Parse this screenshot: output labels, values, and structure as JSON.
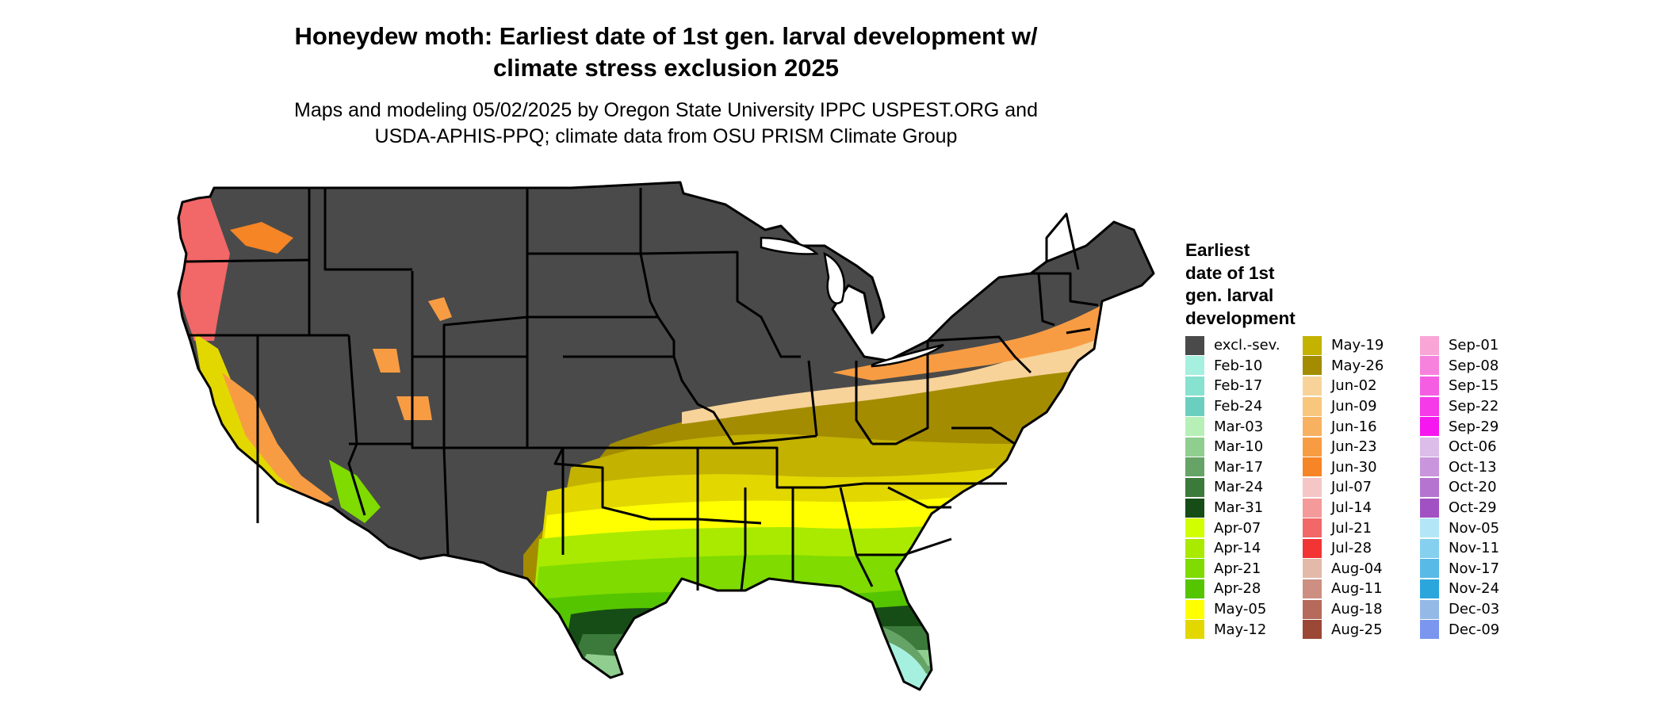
{
  "title_line1": "Honeydew moth: Earliest date of 1st gen. larval development w/",
  "title_line2": "climate stress exclusion 2025",
  "subtitle_line1": "Maps and modeling 05/02/2025 by Oregon State University IPPC USPEST.ORG and",
  "subtitle_line2": "USDA-APHIS-PPQ; climate data from OSU PRISM Climate Group",
  "legend": {
    "title_lines": [
      "Earliest",
      "date of 1st",
      "gen. larval",
      "development"
    ],
    "columns": [
      [
        {
          "label": "excl.-sev.",
          "color": "#4a4a4a"
        },
        {
          "label": "Feb-10",
          "color": "#a6f0e0"
        },
        {
          "label": "Feb-17",
          "color": "#87e2cf"
        },
        {
          "label": "Feb-24",
          "color": "#6bcfbf"
        },
        {
          "label": "Mar-03",
          "color": "#b7f0b7"
        },
        {
          "label": "Mar-10",
          "color": "#8fce8f"
        },
        {
          "label": "Mar-17",
          "color": "#66a366"
        },
        {
          "label": "Mar-24",
          "color": "#3b7a3b"
        },
        {
          "label": "Mar-31",
          "color": "#164d16"
        },
        {
          "label": "Apr-07",
          "color": "#d2ff00"
        },
        {
          "label": "Apr-14",
          "color": "#aaea00"
        },
        {
          "label": "Apr-21",
          "color": "#7fdb00"
        },
        {
          "label": "Apr-28",
          "color": "#55c500"
        },
        {
          "label": "May-05",
          "color": "#ffff00"
        },
        {
          "label": "May-12",
          "color": "#e2d800"
        }
      ],
      [
        {
          "label": "May-19",
          "color": "#c3b200"
        },
        {
          "label": "May-26",
          "color": "#a38c00"
        },
        {
          "label": "Jun-02",
          "color": "#f7d39a"
        },
        {
          "label": "Jun-09",
          "color": "#f8c67d"
        },
        {
          "label": "Jun-16",
          "color": "#f8b160"
        },
        {
          "label": "Jun-23",
          "color": "#f89c43"
        },
        {
          "label": "Jun-30",
          "color": "#f68525"
        },
        {
          "label": "Jul-07",
          "color": "#f5c6c6"
        },
        {
          "label": "Jul-14",
          "color": "#f49a9a"
        },
        {
          "label": "Jul-21",
          "color": "#f26767"
        },
        {
          "label": "Jul-28",
          "color": "#f23434"
        },
        {
          "label": "Aug-04",
          "color": "#e3b9aa"
        },
        {
          "label": "Aug-11",
          "color": "#cd8f81"
        },
        {
          "label": "Aug-18",
          "color": "#b56a5c"
        },
        {
          "label": "Aug-25",
          "color": "#9b4836"
        }
      ],
      [
        {
          "label": "Sep-01",
          "color": "#f9a6d6"
        },
        {
          "label": "Sep-08",
          "color": "#f782dd"
        },
        {
          "label": "Sep-15",
          "color": "#f55ee3"
        },
        {
          "label": "Sep-22",
          "color": "#f63ae9"
        },
        {
          "label": "Sep-29",
          "color": "#f616f0"
        },
        {
          "label": "Oct-06",
          "color": "#dcbde9"
        },
        {
          "label": "Oct-13",
          "color": "#c995dc"
        },
        {
          "label": "Oct-20",
          "color": "#b574cf"
        },
        {
          "label": "Oct-29",
          "color": "#a151c3"
        },
        {
          "label": "Nov-05",
          "color": "#b3e6f6"
        },
        {
          "label": "Nov-11",
          "color": "#86d0ef"
        },
        {
          "label": "Nov-17",
          "color": "#58bae7"
        },
        {
          "label": "Nov-24",
          "color": "#2ba6dd"
        },
        {
          "label": "Dec-03",
          "color": "#94b9e6"
        },
        {
          "label": "Dec-09",
          "color": "#7a96ef"
        }
      ]
    ]
  }
}
